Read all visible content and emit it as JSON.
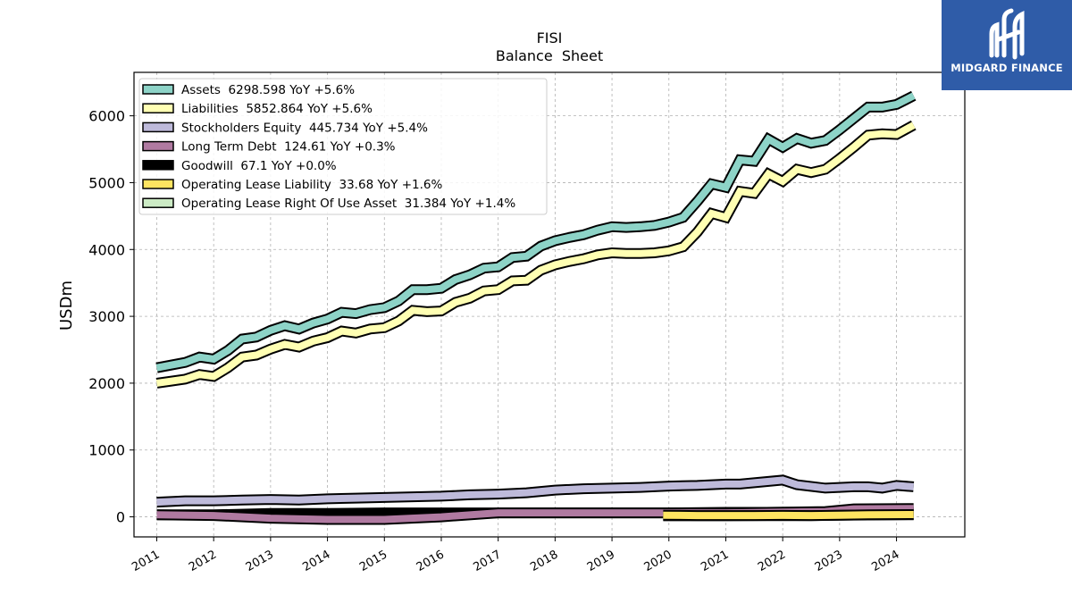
{
  "brand": {
    "name": "MIDGARD FINANCE",
    "color": "#2f5ca8"
  },
  "chart_data": {
    "type": "line",
    "title": "FISI",
    "subtitle": "Balance  Sheet",
    "xlabel": "",
    "ylabel": "USDm",
    "xlim": [
      2010.6,
      2025.2
    ],
    "ylim": [
      -300,
      6650
    ],
    "x_ticks": [
      2011,
      2012,
      2013,
      2014,
      2015,
      2016,
      2017,
      2018,
      2019,
      2020,
      2021,
      2022,
      2023,
      2024
    ],
    "x_tick_labels": [
      "2011",
      "2012",
      "2013",
      "2014",
      "2015",
      "2016",
      "2017",
      "2018",
      "2019",
      "2020",
      "2021",
      "2022",
      "2023",
      "2024"
    ],
    "y_ticks": [
      0,
      1000,
      2000,
      3000,
      4000,
      5000,
      6000
    ],
    "y_tick_labels": [
      "0",
      "1000",
      "2000",
      "3000",
      "4000",
      "5000",
      "6000"
    ],
    "grid": true,
    "legend_position": "top-left",
    "series": [
      {
        "name": "Assets",
        "legend": "Assets  6298.598 YoY +5.6%",
        "color": "#8dd3c7",
        "x": [
          2011.0,
          2011.25,
          2011.5,
          2011.75,
          2012.0,
          2012.25,
          2012.5,
          2012.75,
          2013.0,
          2013.25,
          2013.5,
          2013.75,
          2014.0,
          2014.25,
          2014.5,
          2014.75,
          2015.0,
          2015.25,
          2015.5,
          2015.75,
          2016.0,
          2016.25,
          2016.5,
          2016.75,
          2017.0,
          2017.25,
          2017.5,
          2017.75,
          2018.0,
          2018.25,
          2018.5,
          2018.75,
          2019.0,
          2019.25,
          2019.5,
          2019.75,
          2020.0,
          2020.25,
          2020.5,
          2020.75,
          2021.0,
          2021.25,
          2021.5,
          2021.75,
          2022.0,
          2022.25,
          2022.5,
          2022.75,
          2023.0,
          2023.25,
          2023.5,
          2023.75,
          2024.0,
          2024.3
        ],
        "values": [
          2230,
          2270,
          2310,
          2390,
          2360,
          2490,
          2660,
          2690,
          2790,
          2860,
          2810,
          2900,
          2960,
          3060,
          3040,
          3100,
          3130,
          3230,
          3400,
          3400,
          3420,
          3550,
          3620,
          3720,
          3740,
          3880,
          3900,
          4050,
          4130,
          4180,
          4220,
          4290,
          4340,
          4330,
          4340,
          4360,
          4410,
          4480,
          4720,
          4980,
          4930,
          5340,
          5320,
          5650,
          5530,
          5660,
          5590,
          5630,
          5790,
          5960,
          6130,
          6130,
          6170,
          6300
        ]
      },
      {
        "name": "Liabilities",
        "legend": "Liabilities  5852.864 YoY +5.6%",
        "color": "#ffffb3",
        "x": [
          2011.0,
          2011.25,
          2011.5,
          2011.75,
          2012.0,
          2012.25,
          2012.5,
          2012.75,
          2013.0,
          2013.25,
          2013.5,
          2013.75,
          2014.0,
          2014.25,
          2014.5,
          2014.75,
          2015.0,
          2015.25,
          2015.5,
          2015.75,
          2016.0,
          2016.25,
          2016.5,
          2016.75,
          2017.0,
          2017.25,
          2017.5,
          2017.75,
          2018.0,
          2018.25,
          2018.5,
          2018.75,
          2019.0,
          2019.25,
          2019.5,
          2019.75,
          2020.0,
          2020.25,
          2020.5,
          2020.75,
          2021.0,
          2021.25,
          2021.5,
          2021.75,
          2022.0,
          2022.25,
          2022.5,
          2022.75,
          2023.0,
          2023.25,
          2023.5,
          2023.75,
          2024.0,
          2024.3
        ],
        "values": [
          2000,
          2030,
          2060,
          2130,
          2100,
          2230,
          2390,
          2420,
          2510,
          2580,
          2540,
          2630,
          2680,
          2780,
          2750,
          2810,
          2830,
          2930,
          3090,
          3070,
          3080,
          3210,
          3270,
          3380,
          3400,
          3530,
          3540,
          3690,
          3770,
          3820,
          3860,
          3920,
          3950,
          3940,
          3940,
          3950,
          3980,
          4040,
          4260,
          4540,
          4480,
          4870,
          4840,
          5130,
          5020,
          5200,
          5150,
          5200,
          5360,
          5530,
          5710,
          5730,
          5720,
          5860
        ]
      },
      {
        "name": "Stockholders Equity",
        "legend": "Stockholders Equity  445.734 YoY +5.4%",
        "color": "#bebada",
        "x": [
          2011.0,
          2011.5,
          2012.0,
          2012.5,
          2013.0,
          2013.5,
          2014.0,
          2014.5,
          2015.0,
          2015.5,
          2016.0,
          2016.5,
          2017.0,
          2017.5,
          2018.0,
          2018.5,
          2019.0,
          2019.5,
          2020.0,
          2020.5,
          2021.0,
          2021.25,
          2021.5,
          2022.0,
          2022.25,
          2022.75,
          2023.0,
          2023.25,
          2023.5,
          2023.75,
          2024.0,
          2024.3
        ],
        "values": [
          220,
          240,
          240,
          250,
          260,
          250,
          270,
          280,
          290,
          300,
          310,
          330,
          340,
          360,
          400,
          420,
          430,
          440,
          460,
          470,
          490,
          490,
          510,
          550,
          480,
          430,
          440,
          450,
          450,
          430,
          470,
          450
        ]
      },
      {
        "name": "Long Term Debt",
        "legend": "Long Term Debt  124.61 YoY +0.3%",
        "color": "#b07aa1",
        "x": [
          2011.0,
          2012.0,
          2013.0,
          2014.0,
          2015.0,
          2016.0,
          2017.0,
          2018.0,
          2019.0,
          2020.0,
          2021.0,
          2022.0,
          2022.75,
          2023.0,
          2023.25,
          2024.3
        ],
        "values": [
          30,
          20,
          -20,
          -40,
          -40,
          0,
          60,
          60,
          60,
          60,
          60,
          70,
          80,
          100,
          120,
          125
        ]
      },
      {
        "name": "Goodwill",
        "legend": "Goodwill  67.1 YoY +0.0%",
        "color": "#000000",
        "x": [
          2011.0,
          2012.0,
          2013.0,
          2014.0,
          2015.0,
          2016.0,
          2017.0,
          2018.0,
          2019.0,
          2020.0,
          2021.0,
          2022.0,
          2023.0,
          2024.3
        ],
        "values": [
          30,
          30,
          50,
          50,
          60,
          60,
          60,
          60,
          60,
          60,
          67,
          67,
          67,
          67
        ]
      },
      {
        "name": "Operating Lease Liability",
        "legend": "Operating Lease Liability  33.68 YoY +1.6%",
        "color": "#fee461",
        "x": [
          2019.9,
          2020.5,
          2021.0,
          2021.5,
          2022.0,
          2022.5,
          2023.0,
          2023.5,
          2024.3
        ],
        "values": [
          25,
          20,
          20,
          20,
          22,
          20,
          25,
          30,
          34
        ]
      },
      {
        "name": "Operating Lease Right Of Use Asset",
        "legend": "Operating Lease Right Of Use Asset  31.384 YoY +1.4%",
        "color": "#ccebc5",
        "x": [
          2019.9,
          2020.5,
          2021.0,
          2021.5,
          2022.0,
          2022.5,
          2023.0,
          2023.5,
          2024.3
        ],
        "values": [
          15,
          15,
          15,
          18,
          18,
          18,
          25,
          28,
          31
        ]
      }
    ]
  }
}
